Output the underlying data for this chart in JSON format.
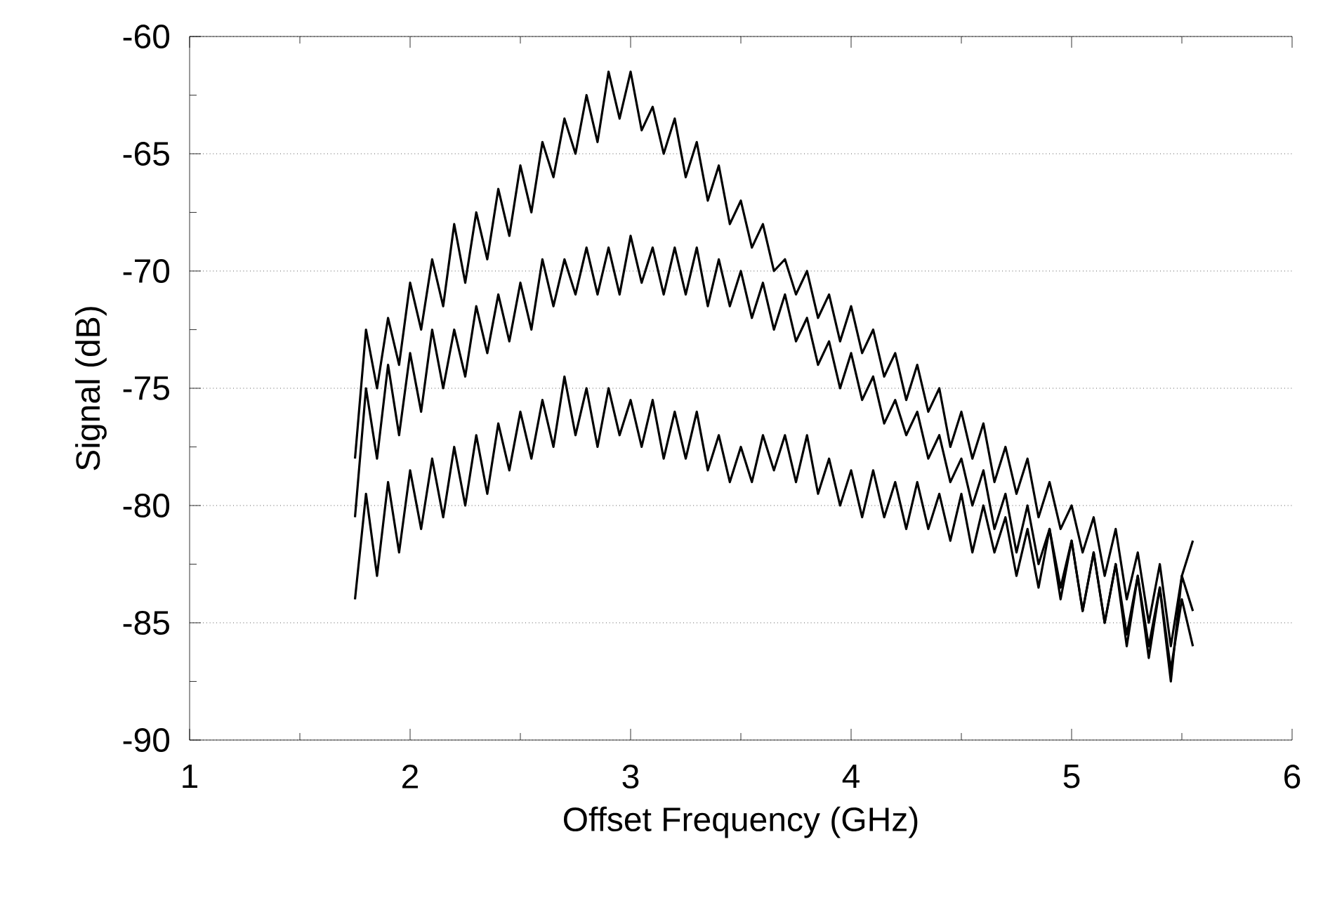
{
  "chart_data": {
    "type": "line",
    "xlabel": "Offset Frequency (GHz)",
    "ylabel": "Signal (dB)",
    "xlim": [
      1,
      6
    ],
    "ylim": [
      -90,
      -60
    ],
    "xticks": [
      1,
      2,
      3,
      4,
      5,
      6
    ],
    "yticks": [
      -90,
      -85,
      -80,
      -75,
      -70,
      -65,
      -60
    ],
    "grid": "y",
    "legend": false,
    "marker": "none",
    "line_style": "solid",
    "x": [
      1.75,
      1.8,
      1.85,
      1.9,
      1.95,
      2.0,
      2.05,
      2.1,
      2.15,
      2.2,
      2.25,
      2.3,
      2.35,
      2.4,
      2.45,
      2.5,
      2.55,
      2.6,
      2.65,
      2.7,
      2.75,
      2.8,
      2.85,
      2.9,
      2.95,
      3.0,
      3.05,
      3.1,
      3.15,
      3.2,
      3.25,
      3.3,
      3.35,
      3.4,
      3.45,
      3.5,
      3.55,
      3.6,
      3.65,
      3.7,
      3.75,
      3.8,
      3.85,
      3.9,
      3.95,
      4.0,
      4.05,
      4.1,
      4.15,
      4.2,
      4.25,
      4.3,
      4.35,
      4.4,
      4.45,
      4.5,
      4.55,
      4.6,
      4.65,
      4.7,
      4.75,
      4.8,
      4.85,
      4.9,
      4.95,
      5.0,
      5.05,
      5.1,
      5.15,
      5.2,
      5.25,
      5.3,
      5.35,
      5.4,
      5.45,
      5.5,
      5.55
    ],
    "series": [
      {
        "color": "#000000",
        "values": [
          -78,
          -72.5,
          -75,
          -72,
          -74,
          -70.5,
          -72.5,
          -69.5,
          -71.5,
          -68,
          -70.5,
          -67.5,
          -69.5,
          -66.5,
          -68.5,
          -65.5,
          -67.5,
          -64.5,
          -66,
          -63.5,
          -65,
          -62.5,
          -64.5,
          -61.5,
          -63.5,
          -61.5,
          -64,
          -63,
          -65,
          -63.5,
          -66,
          -64.5,
          -67,
          -65.5,
          -68,
          -67,
          -69,
          -68,
          -70,
          -69.5,
          -71,
          -70,
          -72,
          -71,
          -73,
          -71.5,
          -73.5,
          -72.5,
          -74.5,
          -73.5,
          -75.5,
          -74,
          -76,
          -75,
          -77.5,
          -76,
          -78,
          -76.5,
          -79,
          -77.5,
          -79.5,
          -78,
          -80.5,
          -79,
          -81,
          -80,
          -82,
          -80.5,
          -83,
          -81,
          -84,
          -82,
          -85,
          -82.5,
          -86,
          -83,
          -81.5
        ]
      },
      {
        "color": "#000000",
        "values": [
          -80.5,
          -75,
          -78,
          -74,
          -77,
          -73.5,
          -76,
          -72.5,
          -75,
          -72.5,
          -74.5,
          -71.5,
          -73.5,
          -71,
          -73,
          -70.5,
          -72.5,
          -69.5,
          -71.5,
          -69.5,
          -71,
          -69,
          -71,
          -69,
          -71,
          -68.5,
          -70.5,
          -69,
          -71,
          -69,
          -71,
          -69,
          -71.5,
          -69.5,
          -71.5,
          -70,
          -72,
          -70.5,
          -72.5,
          -71,
          -73,
          -72,
          -74,
          -73,
          -75,
          -73.5,
          -75.5,
          -74.5,
          -76.5,
          -75.5,
          -77,
          -76,
          -78,
          -77,
          -79,
          -78,
          -80,
          -78.5,
          -81,
          -79.5,
          -82,
          -80,
          -82.5,
          -81,
          -83.5,
          -81.5,
          -84.5,
          -82,
          -85,
          -82.5,
          -86,
          -83,
          -86.5,
          -83.5,
          -87.5,
          -83,
          -84.5
        ]
      },
      {
        "color": "#000000",
        "values": [
          -84,
          -79.5,
          -83,
          -79,
          -82,
          -78.5,
          -81,
          -78,
          -80.5,
          -77.5,
          -80,
          -77,
          -79.5,
          -76.5,
          -78.5,
          -76,
          -78,
          -75.5,
          -77.5,
          -74.5,
          -77,
          -75,
          -77.5,
          -75,
          -77,
          -75.5,
          -77.5,
          -75.5,
          -78,
          -76,
          -78,
          -76,
          -78.5,
          -77,
          -79,
          -77.5,
          -79,
          -77,
          -78.5,
          -77,
          -79,
          -77,
          -79.5,
          -78,
          -80,
          -78.5,
          -80.5,
          -78.5,
          -80.5,
          -79,
          -81,
          -79,
          -81,
          -79.5,
          -81.5,
          -79.5,
          -82,
          -80,
          -82,
          -80.5,
          -83,
          -81,
          -83.5,
          -81,
          -84,
          -81.5,
          -84.5,
          -82,
          -85,
          -82.5,
          -85.5,
          -83,
          -86,
          -83.5,
          -87,
          -84,
          -86
        ]
      }
    ]
  }
}
